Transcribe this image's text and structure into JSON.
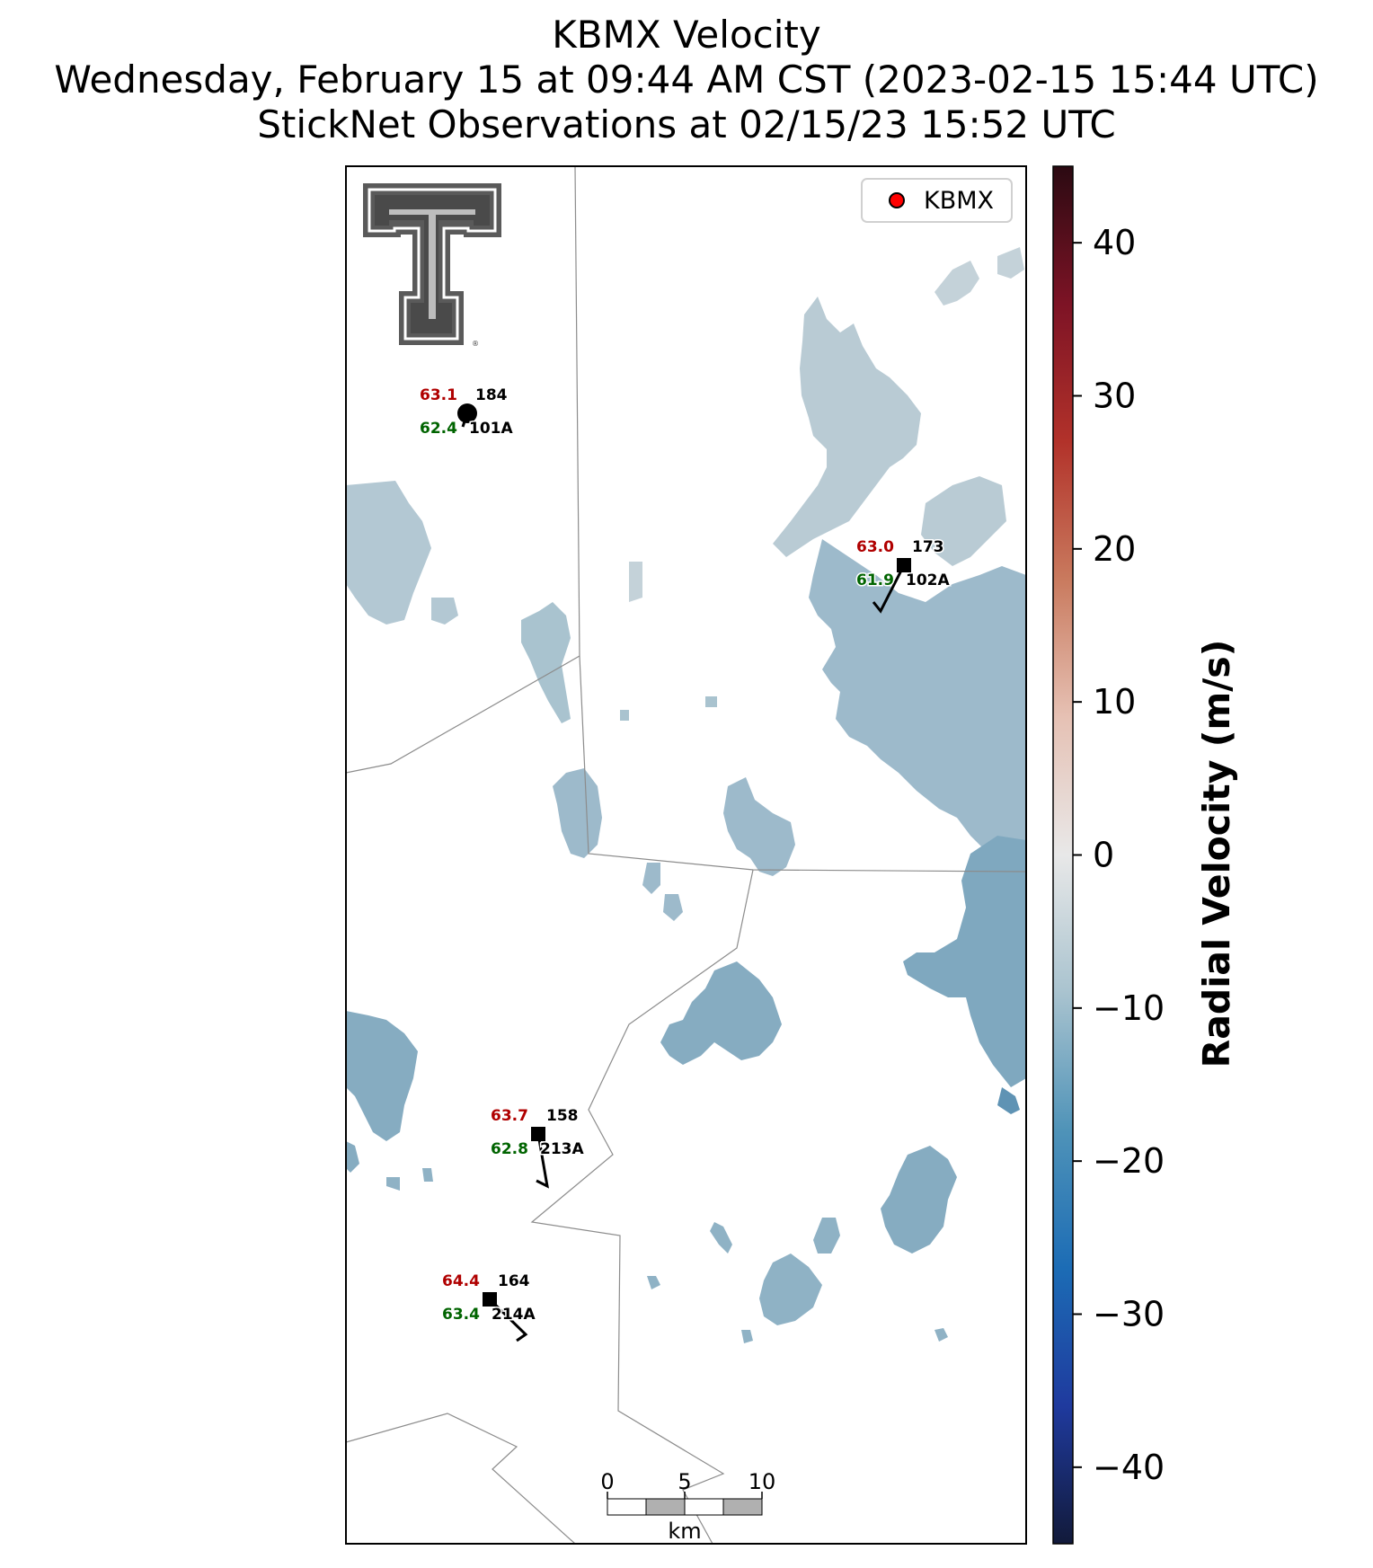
{
  "title": {
    "line1": "KBMX Velocity",
    "line2": "Wednesday, February 15 at 09:44 AM CST (2023-02-15 15:44 UTC)",
    "line3": "StickNet Observations at 02/15/23 15:52 UTC"
  },
  "legend": {
    "entry": "KBMX",
    "marker_color": "#ff0000"
  },
  "colorbar": {
    "label": "Radial Velocity (m/s)",
    "min": -45,
    "max": 45,
    "ticks": [
      {
        "value": 40,
        "label": "40"
      },
      {
        "value": 30,
        "label": "30"
      },
      {
        "value": 20,
        "label": "20"
      },
      {
        "value": 10,
        "label": "10"
      },
      {
        "value": 0,
        "label": "0"
      },
      {
        "value": -10,
        "label": "−10"
      },
      {
        "value": -20,
        "label": "−20"
      },
      {
        "value": -30,
        "label": "−30"
      },
      {
        "value": -40,
        "label": "−40"
      }
    ],
    "colors": [
      "#121a3a",
      "#1f3a9e",
      "#1c6cb5",
      "#4f93b8",
      "#a9c3cf",
      "#e8e8e8",
      "#e6c1b4",
      "#c97a5e",
      "#b2322a",
      "#7d1325",
      "#2b0a12"
    ]
  },
  "stations": [
    {
      "id": "101A",
      "temp": "63.1",
      "dewpoint": "62.4",
      "direction": "184",
      "marker": "circle"
    },
    {
      "id": "102A",
      "temp": "63.0",
      "dewpoint": "61.9",
      "direction": "173",
      "marker": "square"
    },
    {
      "id": "213A",
      "temp": "63.7",
      "dewpoint": "62.8",
      "direction": "158",
      "marker": "square"
    },
    {
      "id": "214A",
      "temp": "64.4",
      "dewpoint": "63.4",
      "direction": "164",
      "marker": "square"
    }
  ],
  "scalebar": {
    "labels": [
      "0",
      "5",
      "10"
    ],
    "unit": "km"
  },
  "logo": {
    "name": "texas-tech-double-t-logo",
    "letters": "TT"
  },
  "colors": {
    "temp_text": "#b00000",
    "dewpoint_text": "#006400",
    "radar_light": "#b9cbd4",
    "radar_mid": "#8eb0c2",
    "radar_dark": "#6c9ab4",
    "county_line": "#8c8c8c"
  }
}
